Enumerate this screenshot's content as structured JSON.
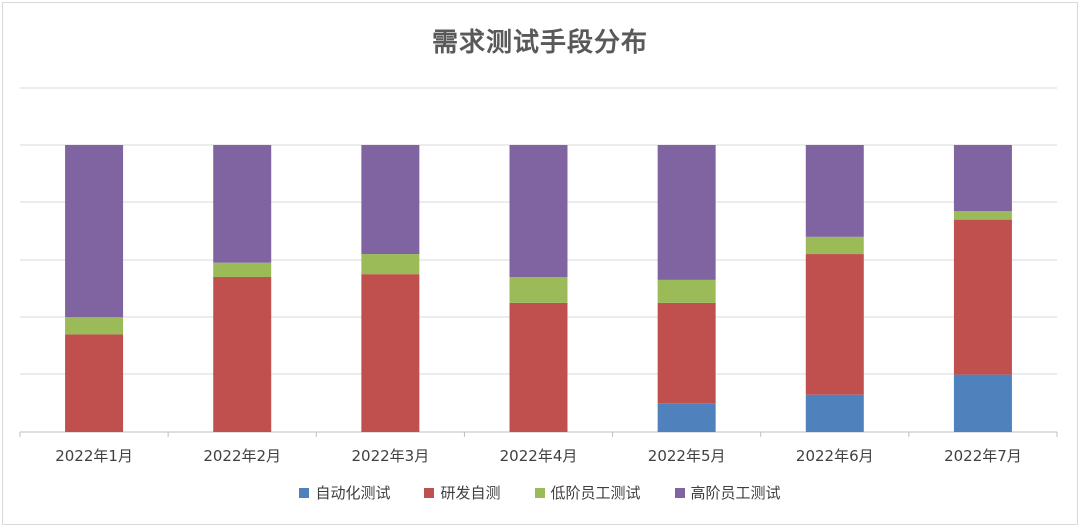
{
  "chart_data": {
    "type": "bar",
    "stacked": "percent",
    "title": "需求测试手段分布",
    "categories": [
      "2022年1月",
      "2022年2月",
      "2022年3月",
      "2022年4月",
      "2022年5月",
      "2022年6月",
      "2022年7月"
    ],
    "series": [
      {
        "name": "自动化测试",
        "color": "#4f81bd",
        "values": [
          0,
          0,
          0,
          0,
          10,
          13,
          20
        ]
      },
      {
        "name": "研发自测",
        "color": "#c0504d",
        "values": [
          34,
          54,
          55,
          45,
          35,
          49,
          54
        ]
      },
      {
        "name": "低阶员工测试",
        "color": "#9bbb59",
        "values": [
          6,
          5,
          7,
          9,
          8,
          6,
          3
        ]
      },
      {
        "name": "高阶员工测试",
        "color": "#8064a2",
        "values": [
          60,
          41,
          38,
          46,
          47,
          32,
          23
        ]
      }
    ],
    "ylim": [
      0,
      100
    ],
    "grid": true,
    "legend": "bottom"
  }
}
